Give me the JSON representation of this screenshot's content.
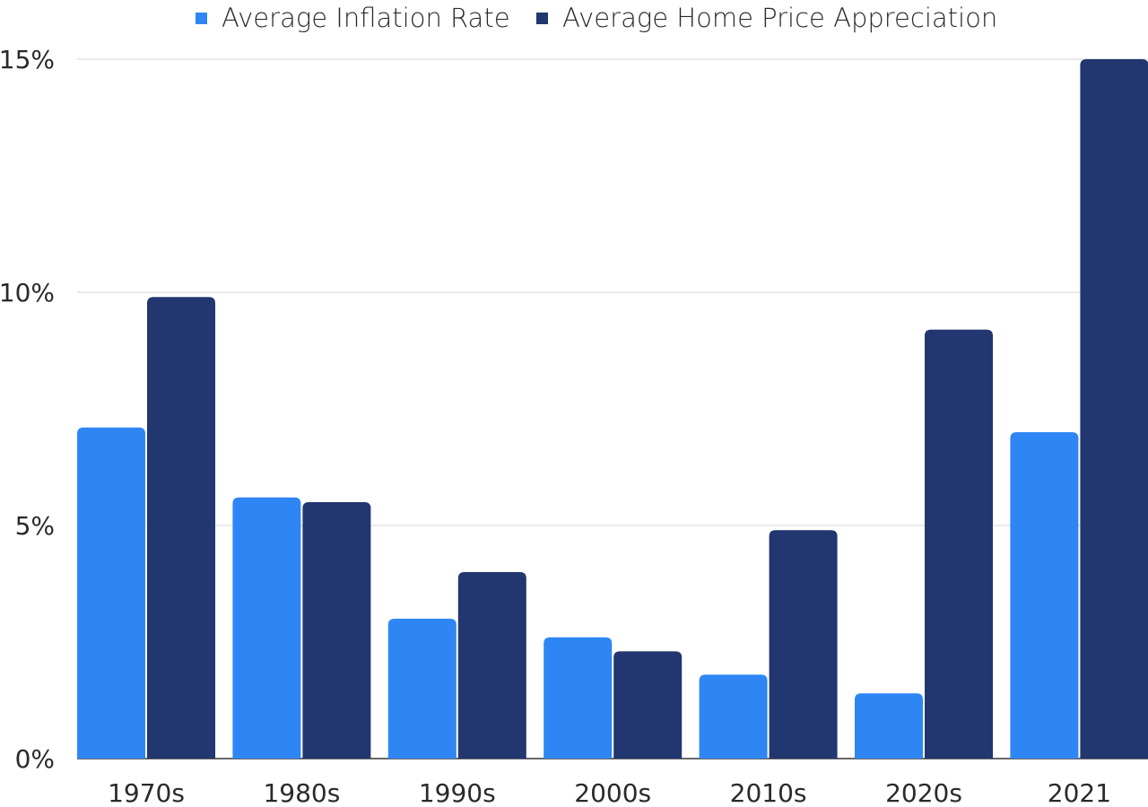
{
  "chart_data": {
    "type": "bar",
    "categories": [
      "1970s",
      "1980s",
      "1990s",
      "2000s",
      "2010s",
      "2020s",
      "2021"
    ],
    "series": [
      {
        "name": "Average Inflation Rate",
        "color": "#2e86f5",
        "values": [
          7.1,
          5.6,
          3.0,
          2.6,
          1.8,
          1.4,
          7.0
        ]
      },
      {
        "name": "Average Home Price Appreciation",
        "color": "#223670",
        "values": [
          9.9,
          5.5,
          4.0,
          2.3,
          4.9,
          9.2,
          15.0
        ]
      }
    ],
    "yticks": [
      "0%",
      "5%",
      "10%",
      "15%"
    ],
    "ytick_values": [
      0,
      5,
      10,
      15
    ],
    "ylim": [
      0,
      15
    ],
    "title": "",
    "xlabel": "",
    "ylabel": "",
    "grid": true,
    "legend_position": "top"
  }
}
